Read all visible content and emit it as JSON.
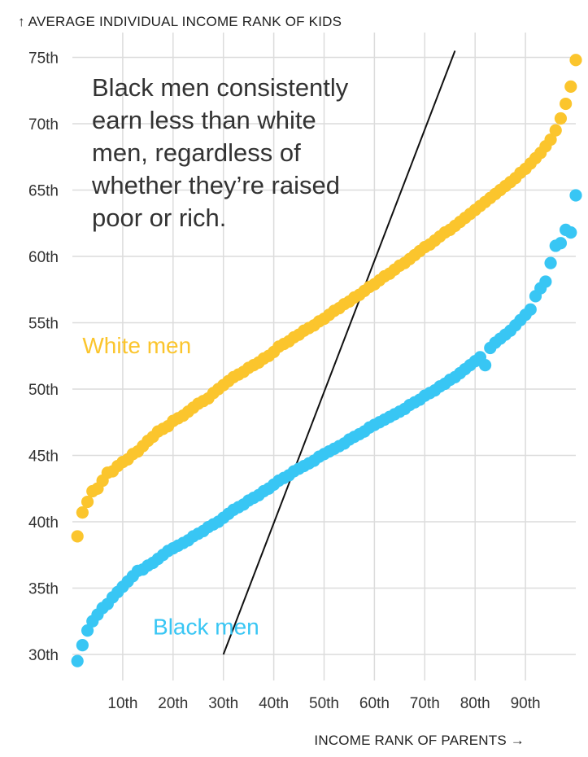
{
  "chart_data": {
    "type": "scatter",
    "title": "",
    "ylabel": "↑ AVERAGE INDIVIDUAL INCOME RANK OF KIDS",
    "xlabel": "INCOME RANK OF PARENTS →",
    "xlim": [
      0,
      100
    ],
    "ylim": [
      29.5,
      77
    ],
    "x_ticks": [
      10,
      20,
      30,
      40,
      50,
      60,
      70,
      80,
      90
    ],
    "x_tick_labels": [
      "10th",
      "20th",
      "30th",
      "40th",
      "50th",
      "60th",
      "70th",
      "80th",
      "90th"
    ],
    "y_ticks": [
      30,
      35,
      40,
      45,
      50,
      55,
      60,
      65,
      70,
      75
    ],
    "y_tick_labels": [
      "30th",
      "35th",
      "40th",
      "45th",
      "50th",
      "55th",
      "60th",
      "65th",
      "70th",
      "75th"
    ],
    "grid": true,
    "annotation": {
      "lines": [
        "Black men consistently",
        "earn less than white",
        "men, regardless of",
        "whether they’re raised",
        "poor or rich."
      ]
    },
    "reference_line": {
      "x": [
        30,
        76
      ],
      "y": [
        30,
        75.5
      ]
    },
    "series": [
      {
        "name": "White men",
        "color": "#fbc52d",
        "label_x": 2,
        "label_y": 52.7,
        "x": [
          1,
          2,
          3,
          4,
          5,
          6,
          7,
          8,
          9,
          10,
          11,
          12,
          13,
          14,
          15,
          16,
          17,
          18,
          19,
          20,
          21,
          22,
          23,
          24,
          25,
          26,
          27,
          28,
          29,
          30,
          31,
          32,
          33,
          34,
          35,
          36,
          37,
          38,
          39,
          40,
          41,
          42,
          43,
          44,
          45,
          46,
          47,
          48,
          49,
          50,
          51,
          52,
          53,
          54,
          55,
          56,
          57,
          58,
          59,
          60,
          61,
          62,
          63,
          64,
          65,
          66,
          67,
          68,
          69,
          70,
          71,
          72,
          73,
          74,
          75,
          76,
          77,
          78,
          79,
          80,
          81,
          82,
          83,
          84,
          85,
          86,
          87,
          88,
          89,
          90,
          91,
          92,
          93,
          94,
          95,
          96,
          97,
          98,
          99,
          100
        ],
        "values": [
          38.9,
          40.7,
          41.5,
          42.3,
          42.5,
          43.1,
          43.7,
          43.8,
          44.2,
          44.5,
          44.7,
          45.1,
          45.3,
          45.7,
          46.1,
          46.4,
          46.8,
          47.0,
          47.2,
          47.6,
          47.8,
          48.0,
          48.3,
          48.6,
          48.9,
          49.1,
          49.3,
          49.7,
          50.0,
          50.3,
          50.6,
          50.9,
          51.1,
          51.3,
          51.6,
          51.8,
          52.0,
          52.3,
          52.5,
          52.8,
          53.2,
          53.4,
          53.6,
          53.9,
          54.1,
          54.4,
          54.6,
          54.8,
          55.1,
          55.3,
          55.6,
          55.9,
          56.1,
          56.4,
          56.6,
          56.9,
          57.1,
          57.4,
          57.7,
          57.9,
          58.2,
          58.5,
          58.7,
          59.0,
          59.3,
          59.5,
          59.8,
          60.1,
          60.4,
          60.7,
          60.9,
          61.2,
          61.5,
          61.8,
          62.0,
          62.3,
          62.6,
          62.9,
          63.2,
          63.5,
          63.8,
          64.1,
          64.4,
          64.7,
          65.0,
          65.3,
          65.6,
          65.9,
          66.3,
          66.6,
          67.0,
          67.4,
          67.8,
          68.3,
          68.8,
          69.5,
          70.4,
          71.5,
          72.8,
          74.8
        ]
      },
      {
        "name": "Black men",
        "color": "#38c6f4",
        "label_x": 16,
        "label_y": 31.5,
        "x": [
          1,
          2,
          3,
          4,
          5,
          6,
          7,
          8,
          9,
          10,
          11,
          12,
          13,
          14,
          15,
          16,
          17,
          18,
          19,
          20,
          21,
          22,
          23,
          24,
          25,
          26,
          27,
          28,
          29,
          30,
          31,
          32,
          33,
          34,
          35,
          36,
          37,
          38,
          39,
          40,
          41,
          42,
          43,
          44,
          45,
          46,
          47,
          48,
          49,
          50,
          51,
          52,
          53,
          54,
          55,
          56,
          57,
          58,
          59,
          60,
          61,
          62,
          63,
          64,
          65,
          66,
          67,
          68,
          69,
          70,
          71,
          72,
          73,
          74,
          75,
          76,
          77,
          78,
          79,
          80,
          81,
          82,
          83,
          84,
          85,
          86,
          87,
          88,
          89,
          90,
          91,
          92,
          93,
          94,
          95,
          96,
          97,
          98,
          99,
          100
        ],
        "values": [
          29.5,
          30.7,
          31.8,
          32.5,
          33.0,
          33.5,
          33.8,
          34.3,
          34.7,
          35.1,
          35.5,
          35.9,
          36.3,
          36.4,
          36.7,
          36.9,
          37.2,
          37.5,
          37.8,
          38.0,
          38.2,
          38.4,
          38.6,
          38.9,
          39.1,
          39.3,
          39.6,
          39.8,
          40.0,
          40.3,
          40.6,
          40.9,
          41.1,
          41.3,
          41.6,
          41.8,
          42.0,
          42.3,
          42.5,
          42.8,
          43.1,
          43.3,
          43.5,
          43.8,
          44.0,
          44.2,
          44.4,
          44.6,
          44.9,
          45.1,
          45.3,
          45.5,
          45.7,
          45.9,
          46.2,
          46.4,
          46.6,
          46.8,
          47.1,
          47.3,
          47.5,
          47.7,
          47.9,
          48.1,
          48.3,
          48.5,
          48.8,
          49.0,
          49.2,
          49.5,
          49.7,
          49.9,
          50.2,
          50.4,
          50.7,
          50.9,
          51.2,
          51.5,
          51.8,
          52.1,
          52.4,
          51.8,
          53.1,
          53.5,
          53.8,
          54.1,
          54.4,
          54.8,
          55.2,
          55.6,
          56.0,
          57.0,
          57.6,
          58.1,
          59.5,
          60.8,
          61.0,
          62.0,
          61.8,
          64.6
        ]
      }
    ]
  }
}
